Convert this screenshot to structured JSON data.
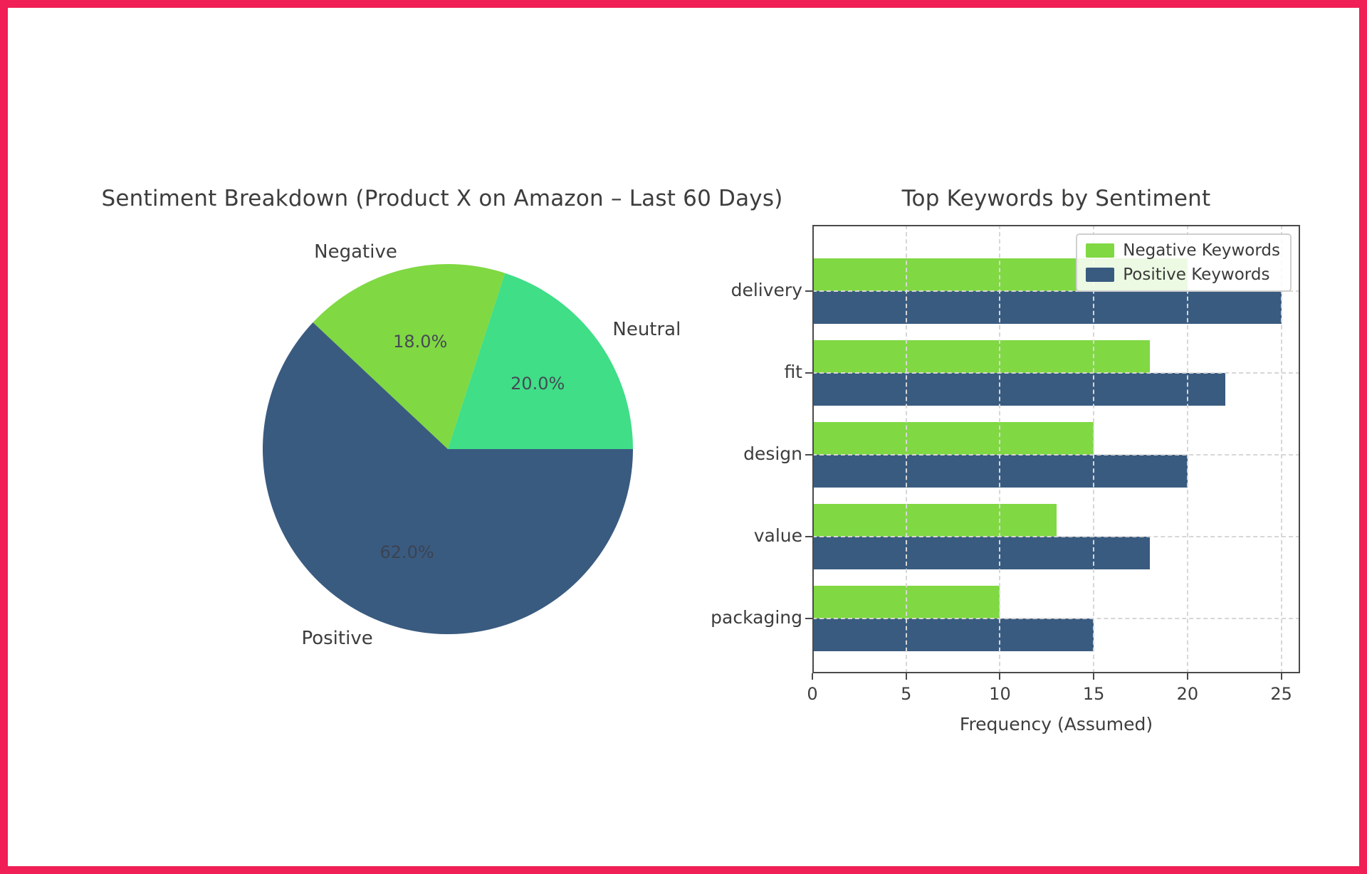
{
  "frame": {
    "border_color": "#F01F56",
    "background_color": "#ffffff"
  },
  "chart_data": [
    {
      "type": "pie",
      "title": "Sentiment Breakdown (Product X on Amazon – Last 60 Days)",
      "labels": [
        "Neutral",
        "Negative",
        "Positive"
      ],
      "values": [
        20.0,
        18.0,
        62.0
      ],
      "value_labels": [
        "20.0%",
        "18.0%",
        "62.0%"
      ],
      "colors": [
        "#3FDE87",
        "#80D843",
        "#3A5B80"
      ],
      "start_angle_deg": 0,
      "direction": "counterclockwise",
      "legend_position": "none"
    },
    {
      "type": "bar",
      "orientation": "horizontal",
      "title": "Top Keywords by Sentiment",
      "categories": [
        "delivery",
        "fit",
        "design",
        "value",
        "packaging"
      ],
      "series": [
        {
          "name": "Negative Keywords",
          "color": "#80D843",
          "values": [
            20,
            18,
            15,
            13,
            10
          ]
        },
        {
          "name": "Positive Keywords",
          "color": "#3A5B80",
          "values": [
            25,
            22,
            20,
            18,
            15
          ]
        }
      ],
      "xlabel": "Frequency (Assumed)",
      "xlim": [
        0,
        26
      ],
      "xticks": [
        0,
        5,
        10,
        15,
        20,
        25
      ],
      "grid": "dashed",
      "legend_position": "upper right"
    }
  ]
}
